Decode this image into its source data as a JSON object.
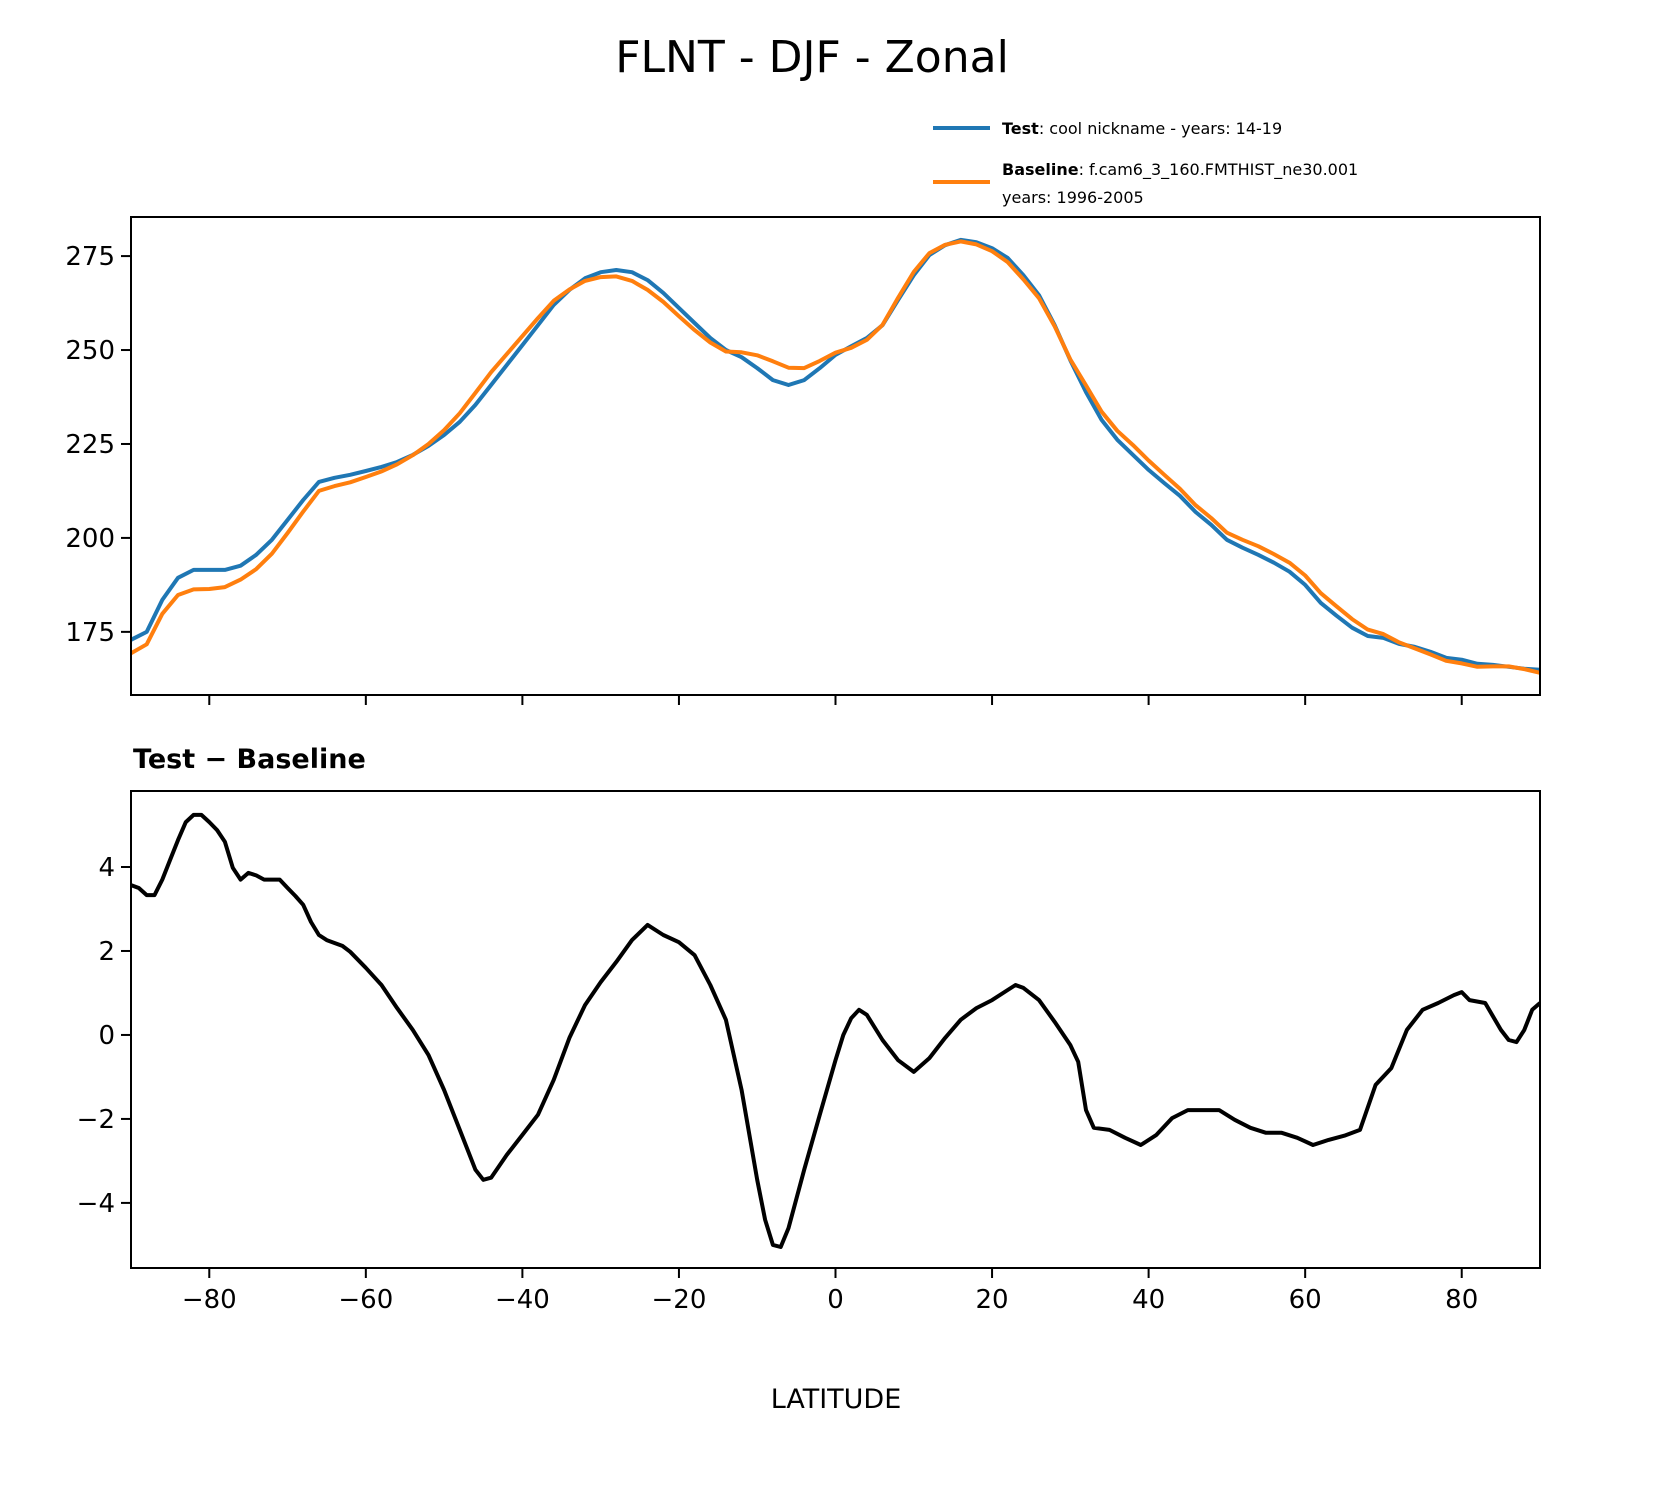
{
  "chart_data": [
    {
      "type": "line",
      "title": "FLNT - DJF - Zonal",
      "xlabel": "",
      "ylabel": "",
      "xlim": [
        -90,
        90
      ],
      "ylim": [
        158.2,
        285.4
      ],
      "xticks": [
        -80,
        -60,
        -40,
        -20,
        0,
        20,
        40,
        60,
        80
      ],
      "yticks": [
        175,
        200,
        225,
        250,
        275
      ],
      "grid": false,
      "legend": {
        "placement": "top-right, above axes",
        "entries": [
          {
            "label_bold": "Test",
            "label_rest": ": cool nickname - years: 14-19",
            "label_line2": ""
          },
          {
            "label_bold": "Baseline",
            "label_rest": ": f.cam6_3_160.FMTHIST_ne30.001",
            "label_line2": "years: 1996-2005"
          }
        ]
      },
      "x": [
        -90,
        -88,
        -86,
        -84,
        -82,
        -80,
        -78,
        -76,
        -74,
        -72,
        -70,
        -68,
        -66,
        -64,
        -62,
        -60,
        -58,
        -56,
        -54,
        -52,
        -50,
        -48,
        -46,
        -44,
        -42,
        -40,
        -38,
        -36,
        -34,
        -32,
        -30,
        -28,
        -26,
        -24,
        -22,
        -20,
        -18,
        -16,
        -14,
        -12,
        -10,
        -8,
        -6,
        -4,
        -2,
        0,
        2,
        4,
        6,
        8,
        10,
        12,
        14,
        16,
        18,
        20,
        22,
        24,
        26,
        28,
        30,
        32,
        34,
        36,
        38,
        40,
        42,
        44,
        46,
        48,
        50,
        52,
        54,
        56,
        58,
        60,
        62,
        64,
        66,
        68,
        70,
        72,
        74,
        76,
        78,
        80,
        82,
        84,
        86,
        88,
        90
      ],
      "series": [
        {
          "name": "Test",
          "color": "#1f77b4",
          "values": [
            172.9,
            175,
            183.5,
            189.4,
            191.5,
            191.5,
            191.5,
            192.6,
            195.5,
            199.5,
            204.8,
            210.1,
            214.9,
            216,
            216.8,
            217.8,
            218.9,
            220.2,
            222.1,
            224.5,
            227.4,
            230.9,
            235.4,
            240.7,
            246,
            251.3,
            256.6,
            262,
            266,
            269.1,
            270.7,
            271.3,
            270.7,
            268.6,
            265.2,
            261.2,
            257.2,
            253.2,
            250,
            248.1,
            245.2,
            242,
            240.7,
            242,
            245.2,
            248.7,
            251,
            253.2,
            256.6,
            263.3,
            269.9,
            275.3,
            277.9,
            279.3,
            278.7,
            277.1,
            274.5,
            269.9,
            264.6,
            256.6,
            247.3,
            238.8,
            231.4,
            226.1,
            222.1,
            218.1,
            214.6,
            211.2,
            206.9,
            203.5,
            199.5,
            197.4,
            195.5,
            193.4,
            191,
            187.5,
            182.7,
            179.3,
            176.1,
            173.9,
            173.4,
            171.8,
            171,
            169.7,
            168.1,
            167.6,
            166.5,
            166.2,
            165.7,
            165.2,
            164.9
          ]
        },
        {
          "name": "Baseline",
          "color": "#ff7f0e",
          "values": [
            169.3,
            171.7,
            179.8,
            184.8,
            186.3,
            186.4,
            186.9,
            188.9,
            191.7,
            195.8,
            201.3,
            207,
            212.5,
            213.8,
            214.8,
            216.2,
            217.7,
            219.6,
            222,
            225,
            228.7,
            233.2,
            238.6,
            244.1,
            248.9,
            253.7,
            258.5,
            263.1,
            266.1,
            268.4,
            269.4,
            269.6,
            268.4,
            266,
            262.8,
            259,
            255.3,
            252,
            249.6,
            249.4,
            248.6,
            247,
            245.3,
            245.2,
            247.1,
            249.3,
            250.6,
            252.7,
            256.7,
            263.9,
            270.8,
            275.8,
            278,
            278.9,
            278.1,
            276.3,
            273.4,
            268.8,
            263.8,
            256.3,
            247.5,
            240.6,
            233.6,
            228.5,
            224.7,
            220.6,
            216.8,
            213.1,
            208.7,
            205.3,
            201.4,
            199.5,
            197.8,
            195.7,
            193.4,
            190,
            185.3,
            181.8,
            178.4,
            175.6,
            174.4,
            172.2,
            170.6,
            169,
            167.3,
            166.6,
            165.7,
            165.8,
            165.8,
            165.1,
            164.1
          ]
        }
      ]
    },
    {
      "type": "line",
      "title": "Test − Baseline",
      "xlabel": "LATITUDE",
      "ylabel": "",
      "xlim": [
        -90,
        90
      ],
      "ylim": [
        -5.55,
        5.81
      ],
      "xticks": [
        -80,
        -60,
        -40,
        -20,
        0,
        20,
        40,
        60,
        80
      ],
      "xticklabels": [
        "−80",
        "−60",
        "−40",
        "−20",
        "0",
        "20",
        "40",
        "60",
        "80"
      ],
      "yticks": [
        -4,
        -2,
        0,
        2,
        4
      ],
      "yticklabels": [
        "−4",
        "−2",
        "0",
        "2",
        "4"
      ],
      "grid": false,
      "series": [
        {
          "name": "Test − Baseline",
          "color": "#000000",
          "x": [
            -90,
            -89,
            -88,
            -87,
            -86,
            -85,
            -84,
            -83,
            -82,
            -81,
            -80,
            -79,
            -78,
            -77,
            -76,
            -75,
            -74,
            -73,
            -72,
            -71,
            -70,
            -69,
            -68,
            -67,
            -66,
            -65,
            -64,
            -63,
            -62,
            -61,
            -60,
            -58,
            -56,
            -54,
            -52,
            -50,
            -48,
            -46,
            -45,
            -44,
            -42,
            -40,
            -38,
            -36,
            -34,
            -32,
            -30,
            -28,
            -26,
            -24,
            -22,
            -20,
            -18,
            -16,
            -14,
            -12,
            -10,
            -9,
            -8,
            -7,
            -6,
            -4,
            -2,
            0,
            1,
            2,
            3,
            4,
            6,
            8,
            10,
            12,
            14,
            16,
            18,
            20,
            22,
            23,
            24,
            26,
            28,
            30,
            31,
            32,
            33,
            35,
            37,
            39,
            41,
            43,
            45,
            47,
            49,
            51,
            53,
            55,
            57,
            59,
            61,
            63,
            65,
            67,
            69,
            71,
            73,
            75,
            77,
            79,
            80,
            81,
            83,
            85,
            86,
            87,
            88,
            89,
            90
          ],
          "values": [
            3.57,
            3.5,
            3.33,
            3.33,
            3.7,
            4.17,
            4.64,
            5.07,
            5.24,
            5.24,
            5.07,
            4.88,
            4.6,
            3.98,
            3.7,
            3.86,
            3.8,
            3.7,
            3.7,
            3.7,
            3.5,
            3.31,
            3.1,
            2.69,
            2.38,
            2.26,
            2.19,
            2.12,
            1.98,
            1.79,
            1.6,
            1.19,
            0.64,
            0.12,
            -0.48,
            -1.31,
            -2.26,
            -3.21,
            -3.45,
            -3.4,
            -2.86,
            -2.38,
            -1.9,
            -1.07,
            -0.07,
            0.71,
            1.26,
            1.74,
            2.26,
            2.62,
            2.38,
            2.21,
            1.9,
            1.19,
            0.36,
            -1.31,
            -3.45,
            -4.4,
            -5.0,
            -5.05,
            -4.6,
            -3.21,
            -1.9,
            -0.6,
            0,
            0.4,
            0.6,
            0.48,
            -0.12,
            -0.6,
            -0.88,
            -0.55,
            -0.07,
            0.36,
            0.64,
            0.83,
            1.07,
            1.19,
            1.12,
            0.83,
            0.31,
            -0.24,
            -0.64,
            -1.79,
            -2.21,
            -2.26,
            -2.45,
            -2.62,
            -2.38,
            -1.98,
            -1.79,
            -1.79,
            -1.79,
            -2.02,
            -2.21,
            -2.33,
            -2.33,
            -2.45,
            -2.62,
            -2.5,
            -2.4,
            -2.26,
            -1.19,
            -0.79,
            0.12,
            0.6,
            0.76,
            0.95,
            1.02,
            0.83,
            0.76,
            0.12,
            -0.12,
            -0.17,
            0.12,
            0.6,
            0.76
          ]
        }
      ]
    }
  ]
}
